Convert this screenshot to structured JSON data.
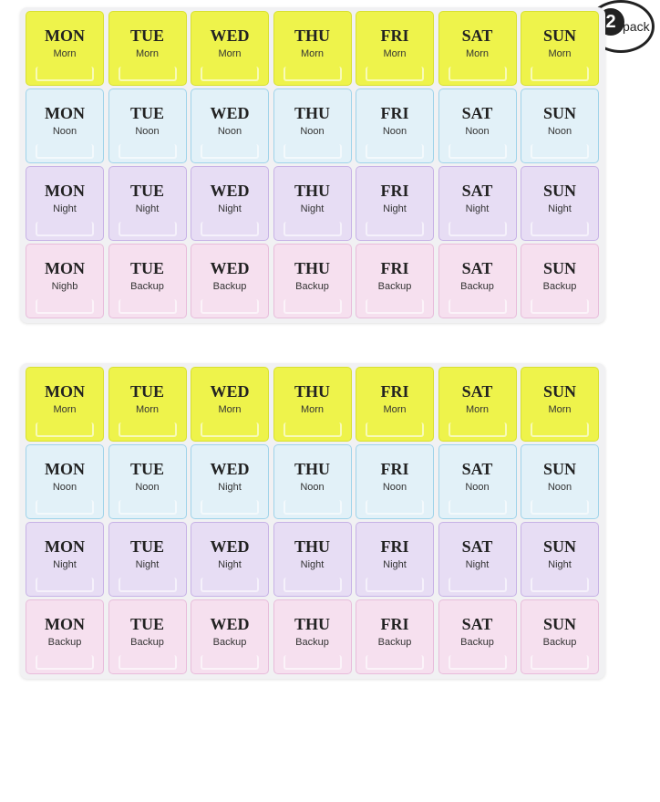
{
  "badge": {
    "number": "2",
    "text": "pack"
  },
  "trays": [
    {
      "rows": [
        {
          "cells": [
            {
              "day": "MON",
              "slot": "Morn"
            },
            {
              "day": "TUE",
              "slot": "Morn"
            },
            {
              "day": "WED",
              "slot": "Morn"
            },
            {
              "day": "THU",
              "slot": "Morn"
            },
            {
              "day": "FRI",
              "slot": "Morn"
            },
            {
              "day": "SAT",
              "slot": "Morn"
            },
            {
              "day": "SUN",
              "slot": "Morn"
            }
          ]
        },
        {
          "cells": [
            {
              "day": "MON",
              "slot": "Noon"
            },
            {
              "day": "TUE",
              "slot": "Noon"
            },
            {
              "day": "WED",
              "slot": "Noon"
            },
            {
              "day": "THU",
              "slot": "Noon"
            },
            {
              "day": "FRI",
              "slot": "Noon"
            },
            {
              "day": "SAT",
              "slot": "Noon"
            },
            {
              "day": "SUN",
              "slot": "Noon"
            }
          ]
        },
        {
          "cells": [
            {
              "day": "MON",
              "slot": "Night"
            },
            {
              "day": "TUE",
              "slot": "Night"
            },
            {
              "day": "WED",
              "slot": "Night"
            },
            {
              "day": "THU",
              "slot": "Night"
            },
            {
              "day": "FRI",
              "slot": "Night"
            },
            {
              "day": "SAT",
              "slot": "Night"
            },
            {
              "day": "SUN",
              "slot": "Night"
            }
          ]
        },
        {
          "cells": [
            {
              "day": "MON",
              "slot": "Nighb"
            },
            {
              "day": "TUE",
              "slot": "Backup"
            },
            {
              "day": "WED",
              "slot": "Backup"
            },
            {
              "day": "THU",
              "slot": "Backup"
            },
            {
              "day": "FRI",
              "slot": "Backup"
            },
            {
              "day": "SAT",
              "slot": "Backup"
            },
            {
              "day": "SUN",
              "slot": "Backup"
            }
          ]
        }
      ]
    },
    {
      "rows": [
        {
          "cells": [
            {
              "day": "MON",
              "slot": "Morn"
            },
            {
              "day": "TUE",
              "slot": "Morn"
            },
            {
              "day": "WED",
              "slot": "Morn"
            },
            {
              "day": "THU",
              "slot": "Morn"
            },
            {
              "day": "FRI",
              "slot": "Morn"
            },
            {
              "day": "SAT",
              "slot": "Morn"
            },
            {
              "day": "SUN",
              "slot": "Morn"
            }
          ]
        },
        {
          "cells": [
            {
              "day": "MON",
              "slot": "Noon"
            },
            {
              "day": "TUE",
              "slot": "Noon"
            },
            {
              "day": "WED",
              "slot": "Night"
            },
            {
              "day": "THU",
              "slot": "Noon"
            },
            {
              "day": "FRI",
              "slot": "Noon"
            },
            {
              "day": "SAT",
              "slot": "Noon"
            },
            {
              "day": "SUN",
              "slot": "Noon"
            }
          ]
        },
        {
          "cells": [
            {
              "day": "MON",
              "slot": "Night"
            },
            {
              "day": "TUE",
              "slot": "Night"
            },
            {
              "day": "WED",
              "slot": "Night"
            },
            {
              "day": "THU",
              "slot": "Night"
            },
            {
              "day": "FRI",
              "slot": "Night"
            },
            {
              "day": "SAT",
              "slot": "Night"
            },
            {
              "day": "SUN",
              "slot": "Night"
            }
          ]
        },
        {
          "cells": [
            {
              "day": "MON",
              "slot": "Backup"
            },
            {
              "day": "TUE",
              "slot": "Backup"
            },
            {
              "day": "WED",
              "slot": "Backup"
            },
            {
              "day": "THU",
              "slot": "Backup"
            },
            {
              "day": "FRI",
              "slot": "Backup"
            },
            {
              "day": "SAT",
              "slot": "Backup"
            },
            {
              "day": "SUN",
              "slot": "Backup"
            }
          ]
        }
      ]
    }
  ]
}
